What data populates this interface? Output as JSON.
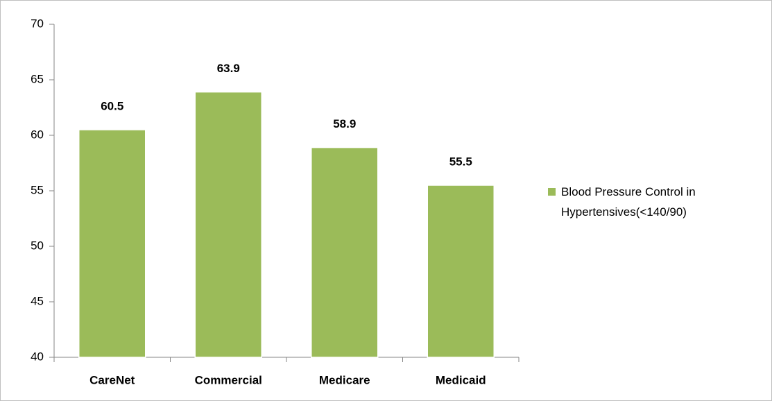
{
  "chart_data": {
    "type": "bar",
    "categories": [
      "CareNet",
      "Commercial",
      "Medicare",
      "Medicaid"
    ],
    "series": [
      {
        "name": "Blood Pressure Control in Hypertensives(<140/90)",
        "color": "#9bbb59",
        "values": [
          60.5,
          63.9,
          58.9,
          55.5
        ]
      }
    ],
    "ylim": [
      40,
      70
    ],
    "yticks": [
      40,
      45,
      50,
      55,
      60,
      65,
      70
    ],
    "grid": false,
    "legend": "right"
  }
}
